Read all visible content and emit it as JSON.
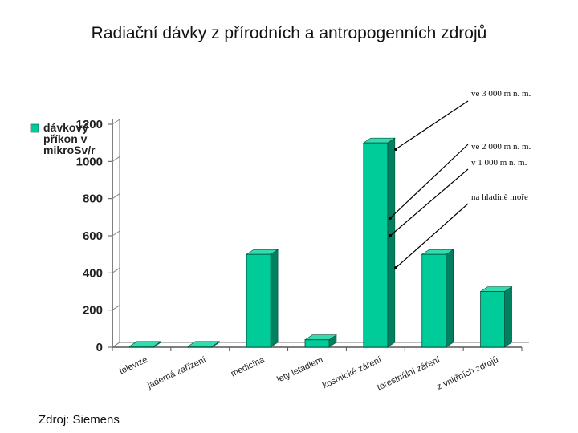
{
  "title": "Radiační dávky z přírodních a antropogenních zdrojů",
  "source": "Zdroj: Siemens",
  "colors": {
    "bar_front": "#00cc99",
    "bar_side": "#00805f",
    "bar_top": "#33dcae"
  },
  "chart_data": {
    "type": "bar",
    "title": "Radiační dávky z přírodních a antropogenních zdrojů",
    "categories": [
      "televize",
      "jaderná zařízení",
      "medicína",
      "lety letadlem",
      "kosmické záření",
      "terestriální záření",
      "z vnitřních zdrojů"
    ],
    "series": [
      {
        "name": "dávkový příkon v mikroSv/r",
        "values": [
          5,
          5,
          500,
          40,
          1100,
          500,
          300
        ]
      }
    ],
    "legend_lines": [
      "dávkový",
      "příkon v",
      "mikroSv/r"
    ],
    "yticks": [
      0,
      200,
      400,
      600,
      800,
      1000,
      1200
    ],
    "ylim": [
      0,
      1200
    ],
    "grid": false,
    "legend_position": "left",
    "annotations": [
      "ve 3 000 m n. m.",
      "ve 2 000 m n. m.",
      "v 1 000 m n. m.",
      "na hladině moře"
    ]
  }
}
